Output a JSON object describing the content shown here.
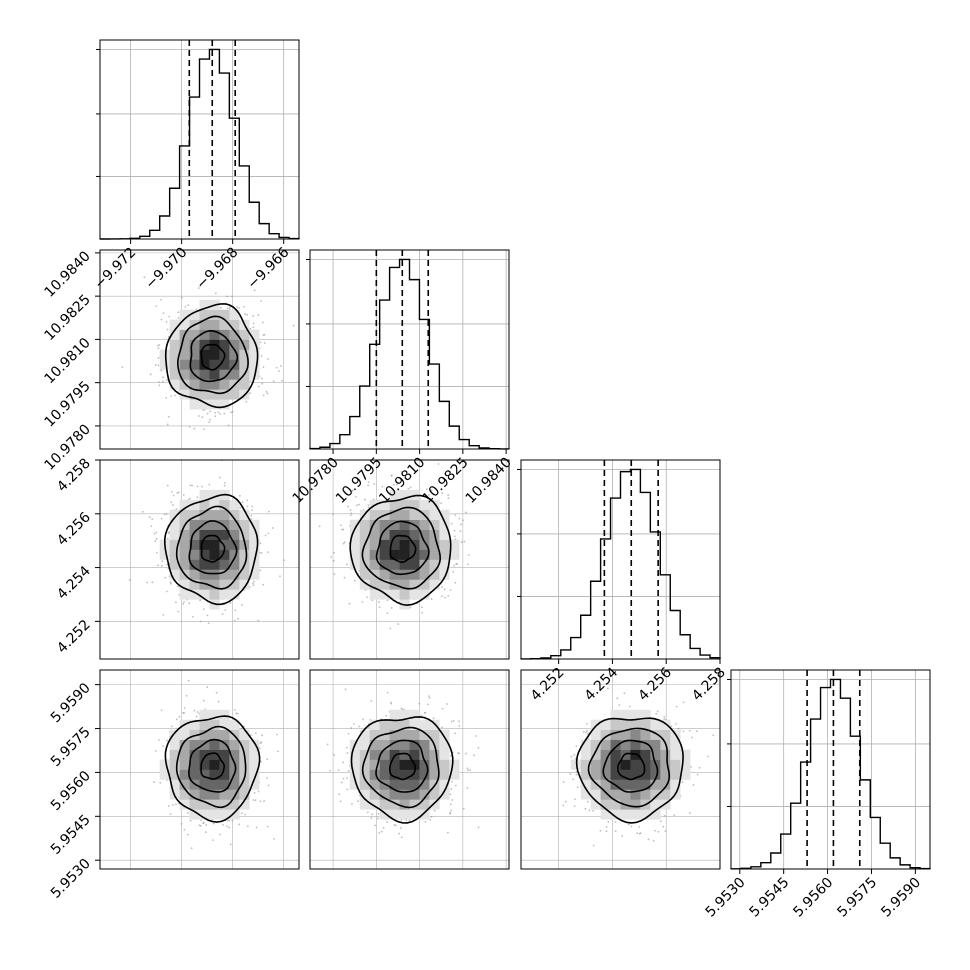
{
  "chart_data": {
    "type": "corner",
    "parameters": [
      {
        "ticks": [
          -9.972,
          -9.97,
          -9.968,
          -9.966
        ],
        "tick_labels": [
          "−9.972",
          "−9.970",
          "−9.968",
          "−9.966"
        ],
        "range": [
          -9.9732,
          -9.9654
        ],
        "mean": -9.9688,
        "std": 0.0009,
        "quantiles": [
          -9.9697,
          -9.9688,
          -9.9679
        ]
      },
      {
        "ticks": [
          10.978,
          10.9795,
          10.981,
          10.9825,
          10.984
        ],
        "tick_labels": [
          "10.9780",
          "10.9795",
          "10.9810",
          "10.9825",
          "10.9840"
        ],
        "range": [
          10.9772,
          10.9841
        ],
        "mean": 10.9804,
        "std": 0.00087,
        "quantiles": [
          10.9795,
          10.9804,
          10.9813
        ]
      },
      {
        "ticks": [
          4.252,
          4.254,
          4.256,
          4.258
        ],
        "tick_labels": [
          "4.252",
          "4.254",
          "4.256",
          "4.258"
        ],
        "range": [
          4.2506,
          4.258
        ],
        "mean": 4.2547,
        "std": 0.00098,
        "quantiles": [
          4.2537,
          4.2547,
          4.2557
        ]
      },
      {
        "ticks": [
          5.953,
          5.9545,
          5.956,
          5.9575,
          5.959
        ],
        "tick_labels": [
          "5.9530",
          "5.9545",
          "5.9560",
          "5.9575",
          "5.9590"
        ],
        "range": [
          5.9527,
          5.9595
        ],
        "mean": 5.9562,
        "std": 0.00088,
        "quantiles": [
          5.9553,
          5.9562,
          5.9571
        ]
      }
    ],
    "histogram_bins": 20,
    "contour_levels_sigma": [
      0.5,
      1.0,
      1.5,
      2.0
    ],
    "grid": true,
    "colors": {
      "axes": "#000000",
      "grid": "#b0b0b0",
      "hist": "#000000",
      "points": "#888888"
    }
  }
}
